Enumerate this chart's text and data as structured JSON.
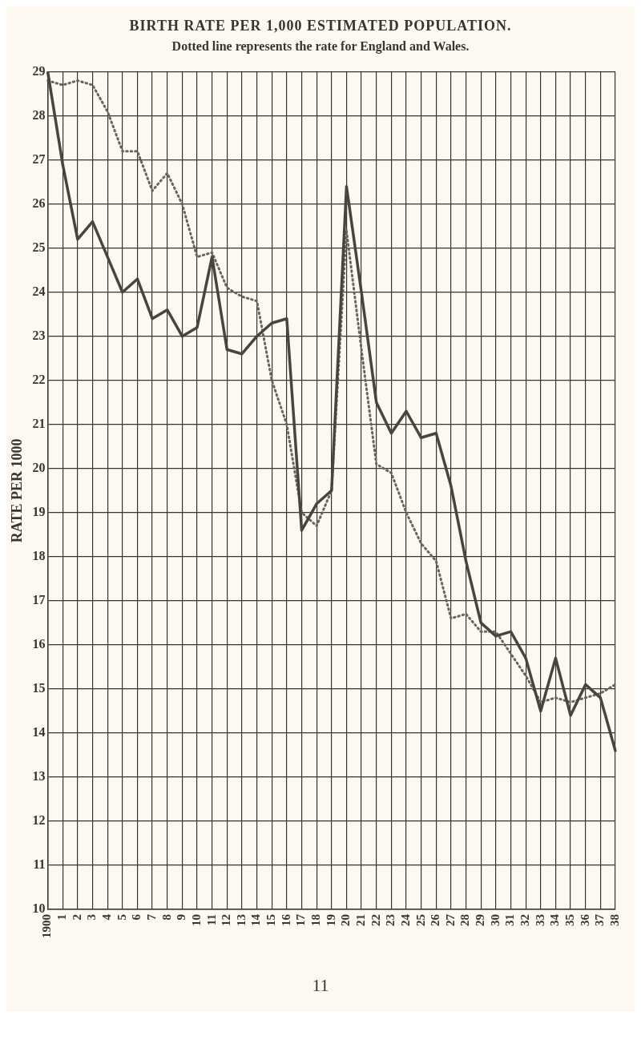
{
  "chart_data": {
    "type": "line",
    "title": "BIRTH RATE PER 1,000 ESTIMATED POPULATION.",
    "subtitle": "Dotted line represents the rate for England and Wales.",
    "ylabel": "RATE PER 1000",
    "annotations": [
      "11"
    ],
    "categories": [
      "1900",
      "1",
      "2",
      "3",
      "4",
      "5",
      "6",
      "7",
      "8",
      "9",
      "10",
      "11",
      "12",
      "13",
      "14",
      "15",
      "16",
      "17",
      "18",
      "19",
      "20",
      "21",
      "22",
      "23",
      "24",
      "25",
      "26",
      "27",
      "28",
      "29",
      "30",
      "31",
      "32",
      "33",
      "34",
      "35",
      "36",
      "37",
      "38"
    ],
    "series": [
      {
        "color": "#4a4440",
        "line_style": "solid",
        "values": [
          29.0,
          26.9,
          25.2,
          25.6,
          24.8,
          24.0,
          24.3,
          23.4,
          23.6,
          23.0,
          23.2,
          24.8,
          22.7,
          22.6,
          23.0,
          23.3,
          23.4,
          18.6,
          19.2,
          19.5,
          26.4,
          24.0,
          21.5,
          20.8,
          21.3,
          20.7,
          20.8,
          19.6,
          17.9,
          16.5,
          16.2,
          16.3,
          15.7,
          14.5,
          15.7,
          14.4,
          15.1,
          14.8,
          13.6
        ]
      },
      {
        "color": "#6a6460",
        "line_style": "dotted",
        "values": [
          28.8,
          28.7,
          28.8,
          28.7,
          28.1,
          27.2,
          27.2,
          26.3,
          26.7,
          26.0,
          24.8,
          24.9,
          24.1,
          23.9,
          23.8,
          22.0,
          21.0,
          19.0,
          18.7,
          19.5,
          25.4,
          22.7,
          20.1,
          19.9,
          19.0,
          18.3,
          17.9,
          16.6,
          16.7,
          16.3,
          16.3,
          15.8,
          15.3,
          14.7,
          14.8,
          14.7,
          14.8,
          14.9,
          15.1
        ]
      }
    ],
    "ylim": [
      10,
      29
    ],
    "yticks": [
      10,
      11,
      12,
      13,
      14,
      15,
      16,
      17,
      18,
      19,
      20,
      21,
      22,
      23,
      24,
      25,
      26,
      27,
      28,
      29
    ],
    "grid": true,
    "legend": false,
    "marker": "none"
  }
}
